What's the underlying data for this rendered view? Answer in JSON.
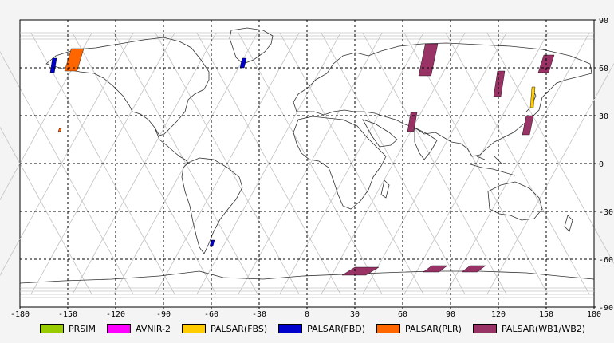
{
  "map": {
    "lon_ticks": [
      "-180",
      "-150",
      "-120",
      "-90",
      "-60",
      "-30",
      "0",
      "30",
      "60",
      "90",
      "120",
      "150",
      "180"
    ],
    "lat_ticks": [
      "90",
      "60",
      "30",
      "0",
      "-30",
      "-60",
      "-90"
    ],
    "lon_range": [
      -180,
      180
    ],
    "lat_range": [
      -90,
      90
    ],
    "grid": "dashed",
    "colors": {
      "grid": "#000000",
      "orbit": "#c4c4c4",
      "coast": "#333333",
      "ocean": "#ffffff"
    }
  },
  "legend": [
    {
      "label": "PRSIM",
      "color": "#99cc00"
    },
    {
      "label": "AVNIR-2",
      "color": "#ff00ff"
    },
    {
      "label": "PALSAR(FBS)",
      "color": "#ffcc00"
    },
    {
      "label": "PALSAR(FBD)",
      "color": "#0000cc"
    },
    {
      "label": "PALSAR(PLR)",
      "color": "#ff6600"
    },
    {
      "label": "PALSAR(WB1/WB2)",
      "color": "#993366"
    }
  ],
  "coverage": [
    {
      "sensor": "PALSAR(WB1/WB2)",
      "lat": [
        55,
        75
      ],
      "lon": [
        70,
        82
      ]
    },
    {
      "sensor": "PALSAR(WB1/WB2)",
      "lat": [
        20,
        32
      ],
      "lon": [
        63,
        69
      ]
    },
    {
      "sensor": "PALSAR(WB1/WB2)",
      "lat": [
        42,
        58
      ],
      "lon": [
        117,
        124
      ]
    },
    {
      "sensor": "PALSAR(WB1/WB2)",
      "lat": [
        57,
        68
      ],
      "lon": [
        145,
        155
      ]
    },
    {
      "sensor": "PALSAR(WB1/WB2)",
      "lat": [
        18,
        30
      ],
      "lon": [
        135,
        142
      ]
    },
    {
      "sensor": "PALSAR(WB1/WB2)",
      "lat": [
        -70,
        -65
      ],
      "lon": [
        22,
        45
      ]
    },
    {
      "sensor": "PALSAR(WB1/WB2)",
      "lat": [
        -68,
        -64
      ],
      "lon": [
        73,
        88
      ]
    },
    {
      "sensor": "PALSAR(WB1/WB2)",
      "lat": [
        -68,
        -64
      ],
      "lon": [
        97,
        112
      ]
    },
    {
      "sensor": "PALSAR(FBD)",
      "lat": [
        57,
        66
      ],
      "lon": [
        -161,
        -157
      ]
    },
    {
      "sensor": "PALSAR(FBD)",
      "lat": [
        60,
        66
      ],
      "lon": [
        -42,
        -38
      ]
    },
    {
      "sensor": "PALSAR(FBD)",
      "lat": [
        -52,
        -48
      ],
      "lon": [
        -61,
        -58
      ]
    },
    {
      "sensor": "PALSAR(PLR)",
      "lat": [
        58,
        72
      ],
      "lon": [
        -152,
        -140
      ]
    },
    {
      "sensor": "PALSAR(PLR)",
      "lat": [
        20,
        22
      ],
      "lon": [
        -156,
        -154
      ]
    },
    {
      "sensor": "PALSAR(FBS)",
      "lat": [
        35,
        48
      ],
      "lon": [
        140,
        143
      ]
    }
  ]
}
